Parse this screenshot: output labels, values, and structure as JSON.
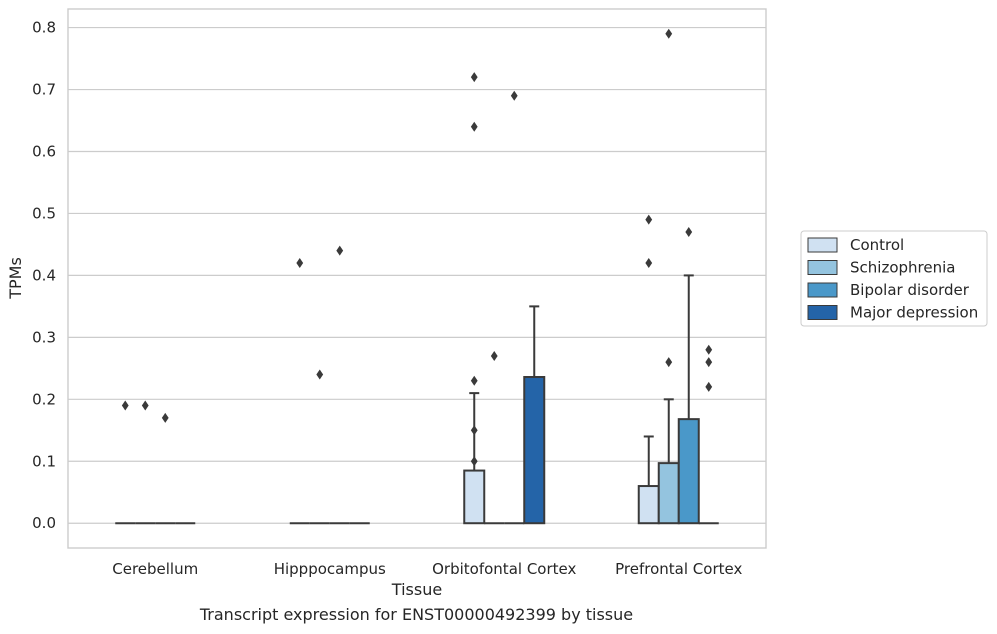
{
  "caption": "Transcript expression for ENST00000492399 by tissue",
  "chart_data": {
    "type": "bar",
    "title": "",
    "xlabel": "Tissue",
    "ylabel": "TPMs",
    "categories": [
      "Cerebellum",
      "Hipppocampus",
      "Orbitofontal Cortex",
      "Prefrontal Cortex"
    ],
    "ylim": [
      -0.04,
      0.83
    ],
    "yticks": [
      0.0,
      0.1,
      0.2,
      0.3,
      0.4,
      0.5,
      0.6,
      0.7,
      0.8
    ],
    "ytick_labels": [
      "0.0",
      "0.1",
      "0.2",
      "0.3",
      "0.4",
      "0.5",
      "0.6",
      "0.7",
      "0.8"
    ],
    "grid": true,
    "legend_position": "right",
    "series": [
      {
        "name": "Control",
        "color": "#d0e1f2",
        "values": [
          0.0,
          0.0,
          0.085,
          0.06
        ],
        "errors": [
          0.0,
          0.0,
          0.21,
          0.14
        ],
        "outliers": [
          [
            0.19
          ],
          [
            0.42
          ],
          [
            0.72,
            0.64,
            0.23,
            0.15,
            0.1
          ],
          [
            0.49,
            0.42
          ]
        ]
      },
      {
        "name": "Schizophrenia",
        "color": "#94c4df",
        "values": [
          0.0,
          0.0,
          0.0,
          0.097
        ],
        "errors": [
          0.0,
          0.0,
          0.0,
          0.2
        ],
        "outliers": [
          [
            0.19
          ],
          [
            0.24
          ],
          [
            0.27
          ],
          [
            0.79,
            0.26
          ]
        ]
      },
      {
        "name": "Bipolar disorder",
        "color": "#4a98c9",
        "values": [
          0.0,
          0.0,
          0.0,
          0.168
        ],
        "errors": [
          0.0,
          0.0,
          0.0,
          0.4
        ],
        "outliers": [
          [
            0.17
          ],
          [
            0.44
          ],
          [
            0.69
          ],
          [
            0.47
          ]
        ]
      },
      {
        "name": "Major depression",
        "color": "#2464a8",
        "values": [
          0.0,
          0.0,
          0.236,
          0.0
        ],
        "errors": [
          0.0,
          0.0,
          0.35,
          0.0
        ],
        "outliers": [
          [],
          [],
          [],
          [
            0.28,
            0.26,
            0.22
          ]
        ]
      }
    ]
  }
}
